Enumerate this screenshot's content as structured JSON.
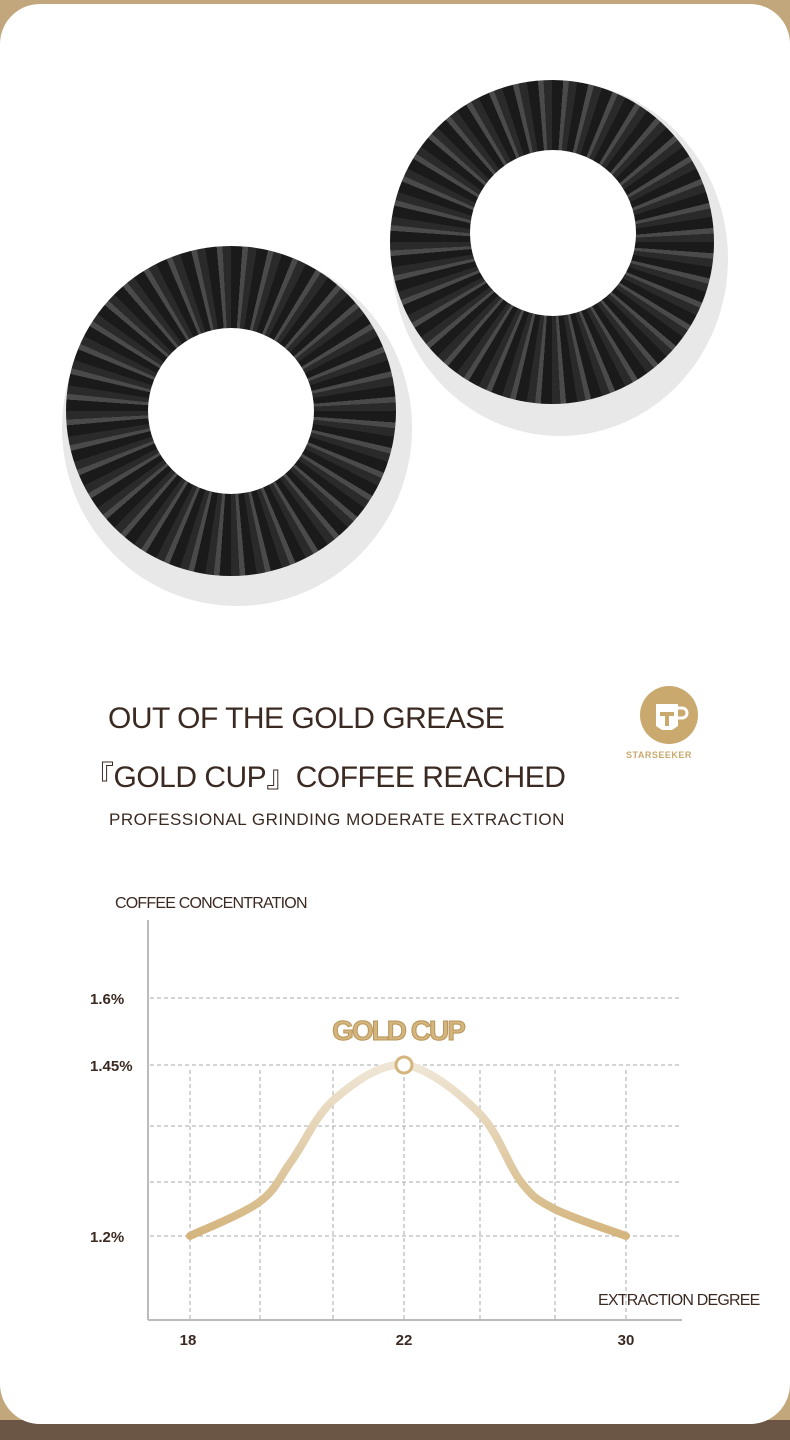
{
  "heading": {
    "line1": "OUT OF THE GOLD GREASE",
    "line2": "『GOLD CUP』COFFEE REACHED",
    "subtitle": "PROFESSIONAL GRINDING MODERATE EXTRACTION"
  },
  "logo": {
    "text": "STARSEEKER",
    "color": "#c9a96e"
  },
  "chart_data": {
    "type": "line",
    "ylabel": "COFFEE CONCENTRATION",
    "xlabel": "EXTRACTION DEGREE",
    "x_ticks": [
      "18",
      "22",
      "30"
    ],
    "y_ticks": [
      "1.6%",
      "1.45%",
      "1.2%"
    ],
    "annotation": "GOLD CUP",
    "peak": {
      "x": 22,
      "y": 1.45
    },
    "series": [
      {
        "points": [
          [
            18,
            1.2
          ],
          [
            19.3,
            1.25
          ],
          [
            19.9,
            1.31
          ],
          [
            20.7,
            1.4
          ],
          [
            22,
            1.45
          ],
          [
            24.7,
            1.38
          ],
          [
            26.2,
            1.28
          ],
          [
            27.4,
            1.24
          ],
          [
            30,
            1.2
          ]
        ]
      }
    ],
    "grid": true,
    "line_color": "#d4b57e"
  }
}
